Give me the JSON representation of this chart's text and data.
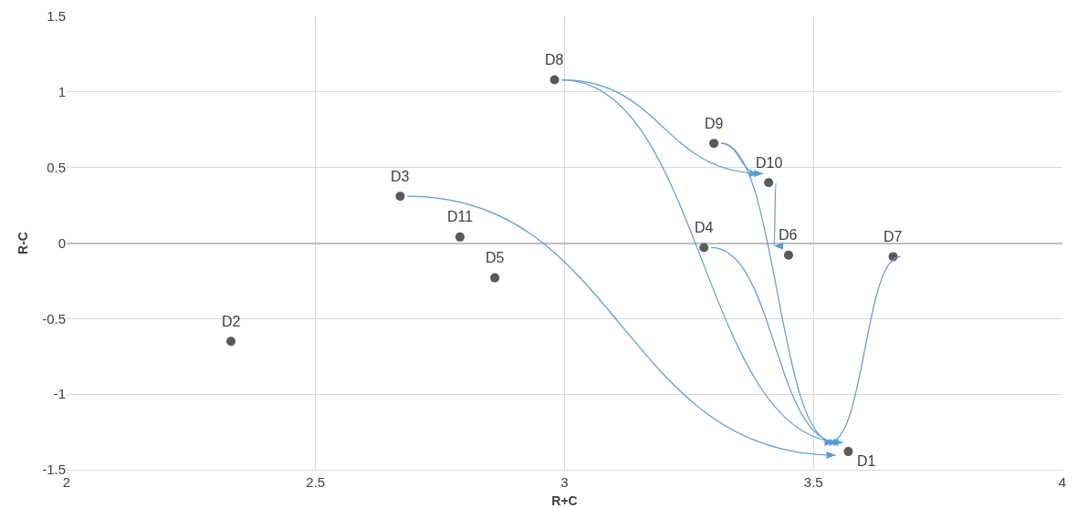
{
  "chart_data": {
    "type": "scatter",
    "xlabel": "R+C",
    "ylabel": "R-C",
    "x": [
      3.57,
      2.33,
      2.67,
      3.28,
      2.86,
      3.45,
      3.66,
      2.98,
      3.3,
      3.41,
      2.79
    ],
    "series": [
      {
        "color": "#595959",
        "values": [
          -1.38,
          -0.65,
          0.31,
          -0.03,
          -0.23,
          -0.08,
          -0.09,
          1.08,
          0.66,
          0.4,
          0.04
        ]
      }
    ],
    "annotations": [
      {
        "text": "D1",
        "x": 3.57,
        "y": -1.38
      },
      {
        "text": "D2",
        "x": 2.33,
        "y": -0.65
      },
      {
        "text": "D3",
        "x": 2.67,
        "y": 0.31
      },
      {
        "text": "D4",
        "x": 3.28,
        "y": -0.03
      },
      {
        "text": "D5",
        "x": 2.86,
        "y": -0.23
      },
      {
        "text": "D6",
        "x": 3.45,
        "y": -0.08
      },
      {
        "text": "D7",
        "x": 3.66,
        "y": -0.09
      },
      {
        "text": "D8",
        "x": 2.98,
        "y": 1.08
      },
      {
        "text": "D9",
        "x": 3.3,
        "y": 0.66
      },
      {
        "text": "D10",
        "x": 3.41,
        "y": 0.4
      },
      {
        "text": "D11",
        "x": 2.79,
        "y": 0.04
      }
    ],
    "xlim": [
      2,
      4
    ],
    "xticks": [
      2,
      2.5,
      3,
      3.5,
      4
    ],
    "ylim": [
      -1.5,
      1.5
    ],
    "yticks": [
      -1.5,
      -1,
      -0.5,
      0,
      0.5,
      1,
      1.5
    ],
    "grid": true,
    "marker": "circle"
  }
}
